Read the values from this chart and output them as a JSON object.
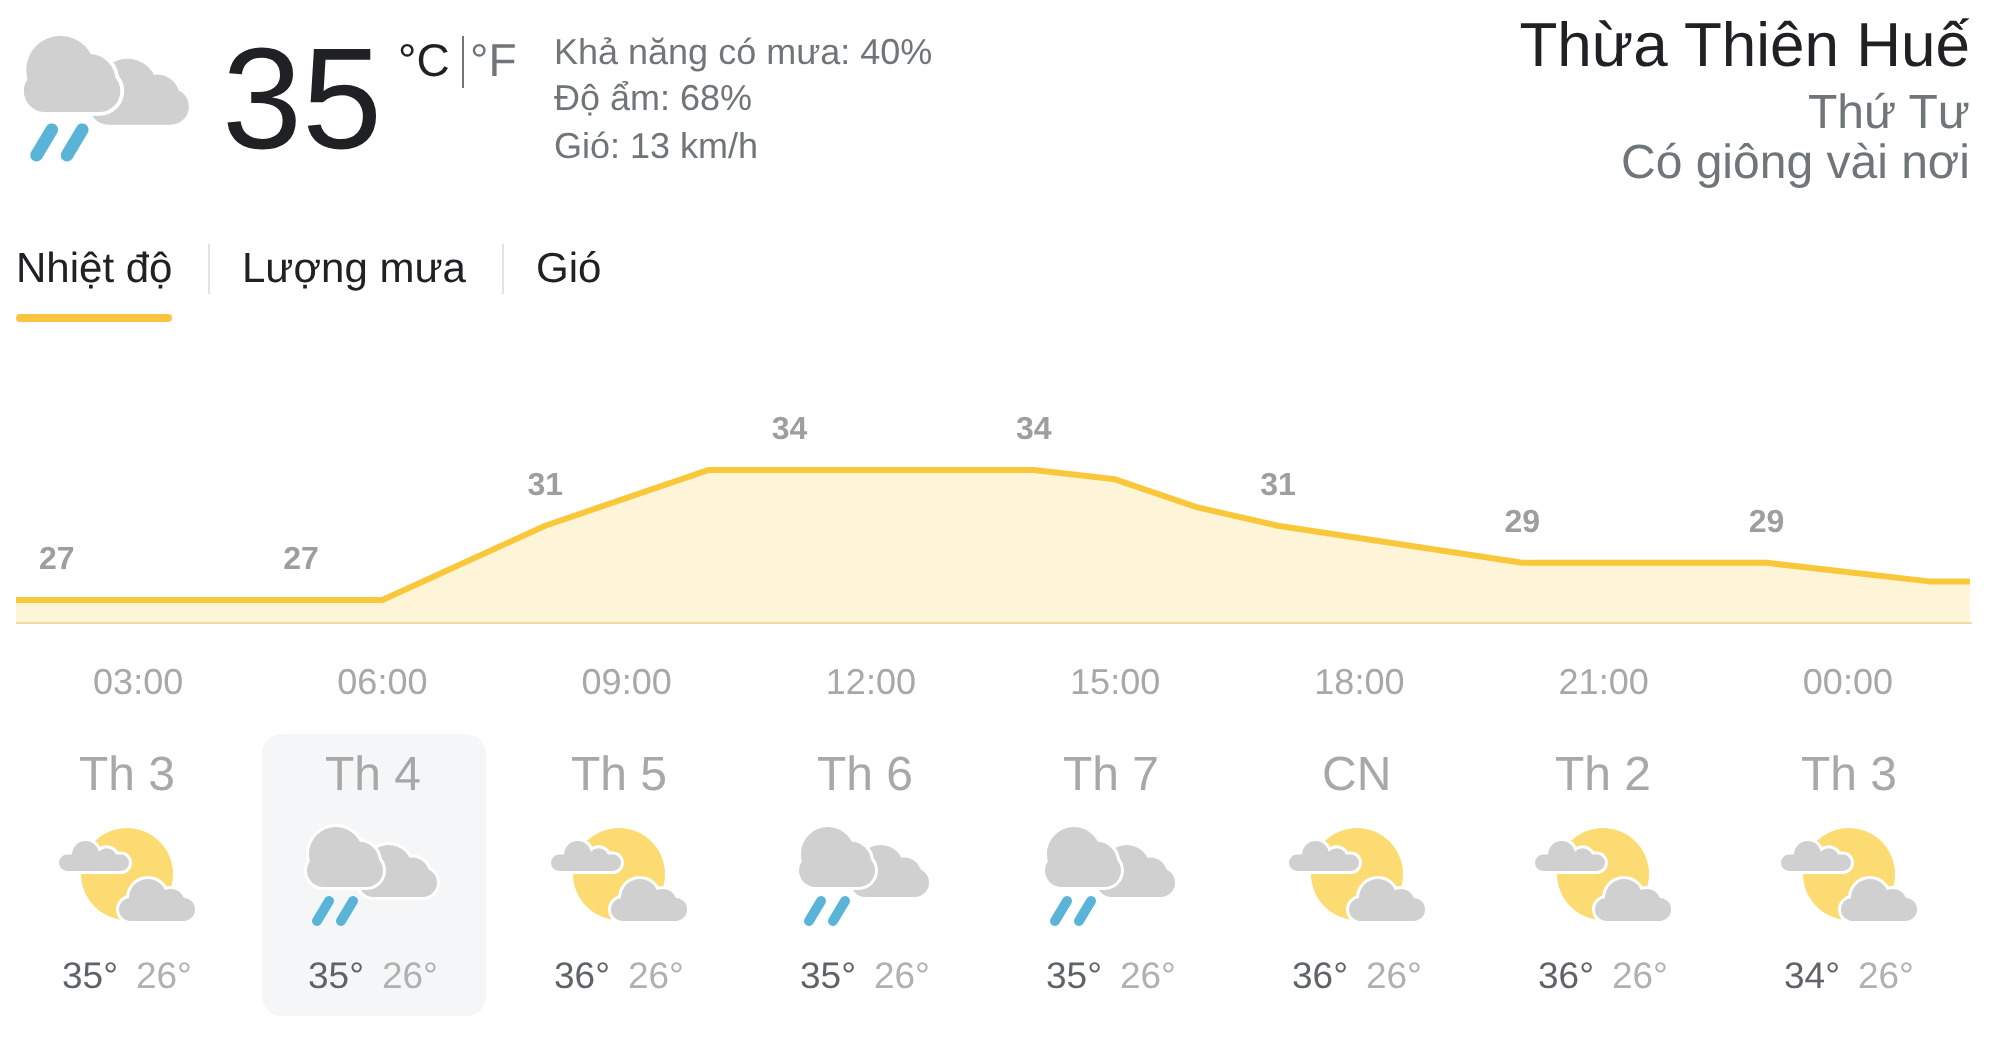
{
  "chart_data": [
    {
      "type": "other",
      "title": "Thừa Thiên Huế",
      "subtitle": "Thứ Tư",
      "annotations": [
        "35",
        "°C",
        "°F",
        "Khả năng có mưa: 40%",
        "Độ ẩm: 68%",
        "Gió: 13 km/h",
        "Có giông vài nơi",
        "Nhiệt độ",
        "Lượng mưa",
        "Gió"
      ]
    },
    {
      "type": "area",
      "x": [
        1.5,
        2,
        5,
        6,
        8,
        10,
        11,
        12,
        14,
        15,
        16,
        17,
        20,
        23,
        25,
        25.5
      ],
      "values": [
        27,
        27,
        27,
        27,
        31,
        34,
        34,
        34,
        34,
        33.5,
        32,
        31,
        29,
        29,
        28,
        28
      ],
      "value_labels": [
        null,
        "27",
        "27",
        null,
        "31",
        null,
        "34",
        null,
        "34",
        null,
        null,
        "31",
        "29",
        "29",
        null,
        null
      ],
      "color": "#f9c83a",
      "xlim": [
        1.5,
        25.5
      ],
      "xticks": [
        {
          "value": 3,
          "label": "03:00"
        },
        {
          "value": 6,
          "label": "06:00"
        },
        {
          "value": 9,
          "label": "09:00"
        },
        {
          "value": 12,
          "label": "12:00"
        },
        {
          "value": 15,
          "label": "15:00"
        },
        {
          "value": 18,
          "label": "18:00"
        },
        {
          "value": 21,
          "label": "21:00"
        },
        {
          "value": 24,
          "label": "00:00"
        }
      ],
      "tick_labels": "x",
      "marker": "none",
      "line_style": "solid"
    },
    {
      "type": "other",
      "categories": [
        "Th 3",
        "Th 4",
        "Th 5",
        "Th 6",
        "Th 7",
        "CN",
        "Th 2",
        "Th 3"
      ],
      "annotations": [
        "35°",
        "26°",
        "35°",
        "26°",
        "36°",
        "26°",
        "35°",
        "26°",
        "35°",
        "26°",
        "36°",
        "26°",
        "36°",
        "26°",
        "34°",
        "26°"
      ]
    }
  ]
}
